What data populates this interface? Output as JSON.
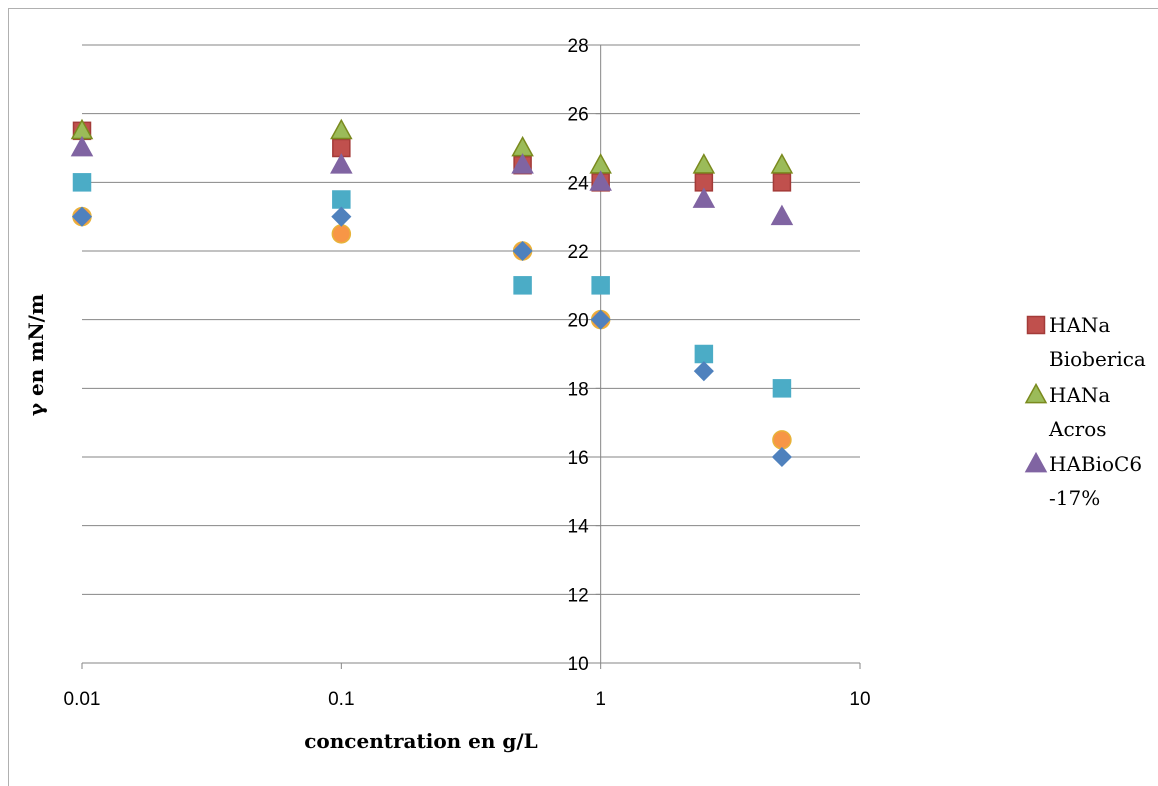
{
  "chart_data": {
    "type": "scatter",
    "title": "",
    "xlabel": "concentration en g/L",
    "ylabel": "γ en mN/m",
    "xscale": "log",
    "xlim": [
      0.01,
      10
    ],
    "ylim": [
      10,
      28
    ],
    "xticks": [
      0.01,
      0.1,
      1,
      10
    ],
    "xtick_labels": [
      "0.01",
      "0.1",
      "1",
      "10"
    ],
    "yticks": [
      10,
      12,
      14,
      16,
      18,
      20,
      22,
      24,
      26,
      28
    ],
    "ytick_labels": [
      "10",
      "12",
      "14",
      "16",
      "18",
      "20",
      "22",
      "24",
      "26",
      "28"
    ],
    "grid": "horizontal",
    "legend_position": "right",
    "series": [
      {
        "name": "HANa Bioberica",
        "legend_lines": [
          "HANa",
          "Bioberica"
        ],
        "marker": "square",
        "color": "#c0504d",
        "stroke": "#a33b38",
        "in_legend": true,
        "x": [
          0.01,
          0.1,
          0.5,
          1,
          2.5,
          5
        ],
        "y": [
          25.5,
          25,
          24.5,
          24,
          24,
          24
        ]
      },
      {
        "name": "HANa Acros",
        "legend_lines": [
          "HANa",
          "Acros"
        ],
        "marker": "triangle",
        "color": "#9bbb59",
        "stroke": "#7a8a1e",
        "in_legend": true,
        "x": [
          0.01,
          0.1,
          0.5,
          1,
          2.5,
          5
        ],
        "y": [
          25.5,
          25.5,
          25,
          24.5,
          24.5,
          24.5
        ]
      },
      {
        "name": "HABioC6 -17%",
        "legend_lines": [
          "HABioC6",
          "-17%"
        ],
        "marker": "triangle",
        "color": "#8064a2",
        "stroke": "#8064a2",
        "in_legend": true,
        "x": [
          0.01,
          0.1,
          0.5,
          1,
          2.5,
          5
        ],
        "y": [
          25,
          24.5,
          24.5,
          24,
          23.5,
          23
        ]
      },
      {
        "marker": "diamond",
        "color": "#4f81bd",
        "stroke": "#4f81bd",
        "in_legend": false,
        "x": [
          0.01,
          0.1,
          0.5,
          1,
          2.5,
          5
        ],
        "y": [
          23,
          23,
          22,
          20,
          18.5,
          16
        ]
      },
      {
        "marker": "circle",
        "color": "#f79646",
        "stroke": "#e8b33a",
        "in_legend": false,
        "x": [
          0.01,
          0.1,
          0.5,
          1,
          5
        ],
        "y": [
          23,
          22.5,
          22,
          20,
          16.5
        ]
      },
      {
        "marker": "square",
        "color": "#4bacc6",
        "stroke": "#4bacc6",
        "in_legend": false,
        "x": [
          0.01,
          0.1,
          0.5,
          1,
          2.5,
          5
        ],
        "y": [
          24,
          23.5,
          21,
          21,
          19,
          18
        ]
      }
    ]
  }
}
